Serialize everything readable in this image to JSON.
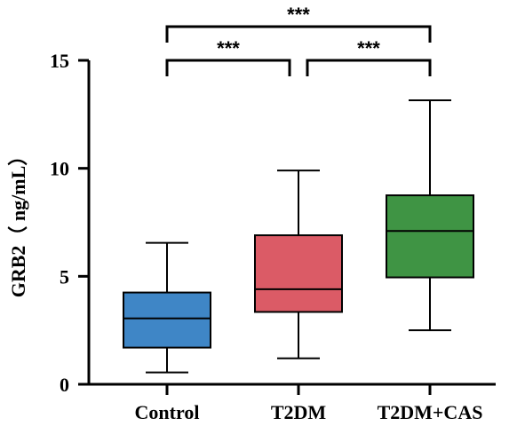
{
  "chart_data": {
    "type": "box",
    "ylabel": "GRB2（ ng/mL）",
    "xlabel": "",
    "ylim": [
      0,
      15
    ],
    "yticks": [
      0,
      5,
      10,
      15
    ],
    "categories": [
      "Control",
      "T2DM",
      "T2DM+CAS"
    ],
    "boxes": [
      {
        "category": "Control",
        "min": 0.55,
        "q1": 1.7,
        "median": 3.05,
        "q3": 4.25,
        "max": 6.55,
        "color": "#3f86c6"
      },
      {
        "category": "T2DM",
        "min": 1.2,
        "q1": 3.35,
        "median": 4.4,
        "q3": 6.9,
        "max": 9.9,
        "color": "#db5b66"
      },
      {
        "category": "T2DM+CAS",
        "min": 2.5,
        "q1": 4.95,
        "median": 7.1,
        "q3": 8.75,
        "max": 13.15,
        "color": "#3f9444"
      }
    ],
    "significance": [
      {
        "from": "Control",
        "to": "T2DM+CAS",
        "label": "***"
      },
      {
        "from": "Control",
        "to": "T2DM",
        "label": "***"
      },
      {
        "from": "T2DM",
        "to": "T2DM+CAS",
        "label": "***"
      }
    ]
  }
}
